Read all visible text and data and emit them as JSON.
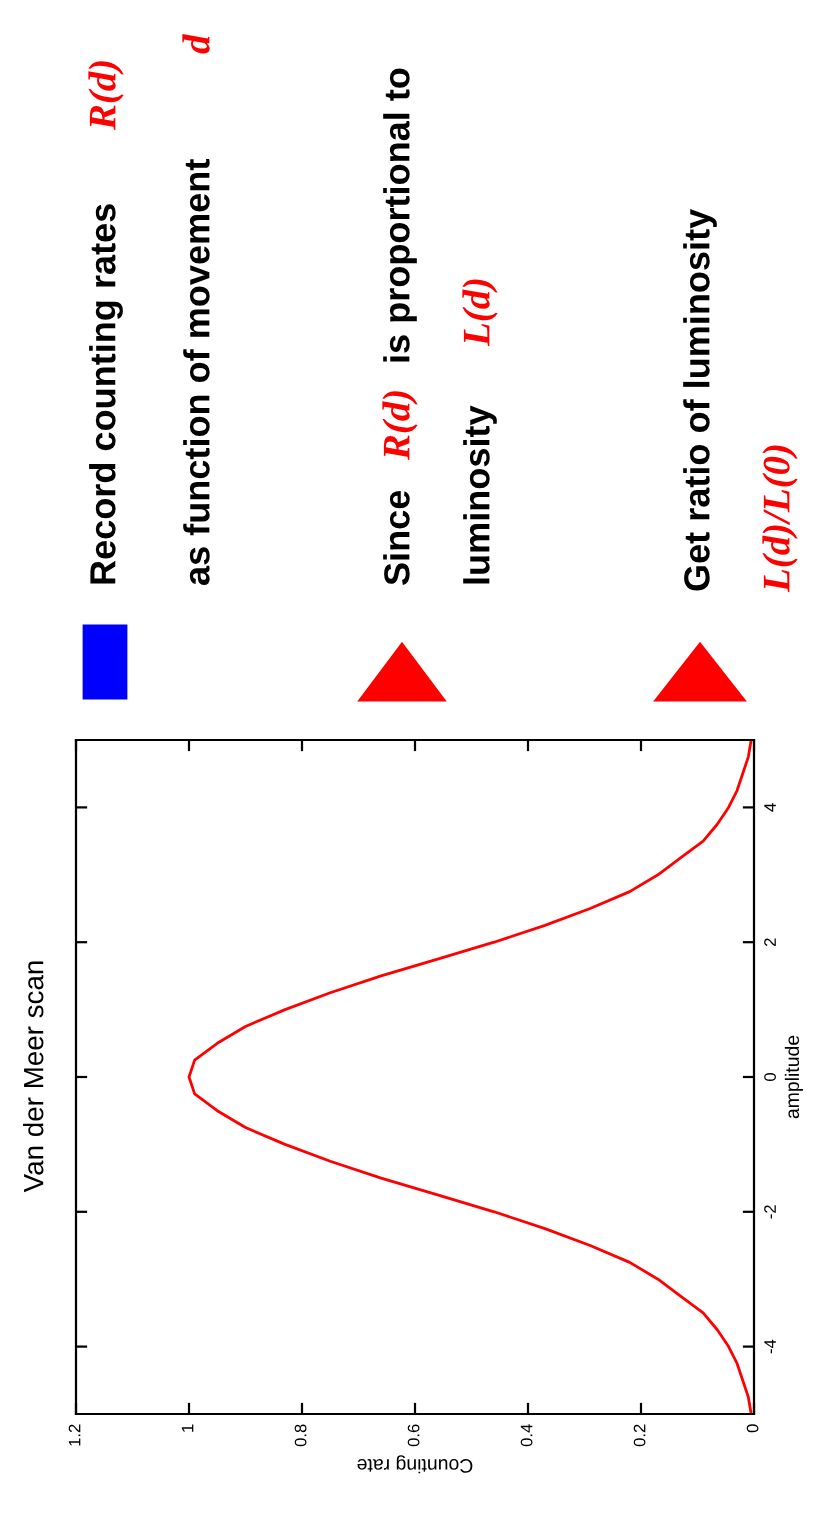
{
  "chart_data": {
    "type": "line",
    "title": "Van der Meer scan",
    "xlabel": "Counting rate",
    "ylabel": "amplitude",
    "series": [
      {
        "color": "#ff0000",
        "x": [
          0.005,
          0.01,
          0.02,
          0.03,
          0.045,
          0.065,
          0.09,
          0.13,
          0.17,
          0.22,
          0.29,
          0.37,
          0.46,
          0.56,
          0.66,
          0.75,
          0.83,
          0.9,
          0.95,
          0.99,
          1,
          0.99,
          0.95,
          0.9,
          0.83,
          0.75,
          0.66,
          0.56,
          0.46,
          0.37,
          0.29,
          0.22,
          0.17,
          0.13,
          0.09,
          0.065,
          0.045,
          0.03,
          0.02,
          0.01,
          0.005
        ],
        "values": [
          -5,
          -4.75,
          -4.5,
          -4.25,
          -4,
          -3.75,
          -3.5,
          -3.25,
          -3,
          -2.75,
          -2.5,
          -2.25,
          -2,
          -1.75,
          -1.5,
          -1.25,
          -1,
          -0.75,
          -0.5,
          -0.25,
          0,
          0.25,
          0.5,
          0.75,
          1,
          1.25,
          1.5,
          1.75,
          2,
          2.25,
          2.5,
          2.75,
          3,
          3.25,
          3.5,
          3.75,
          4,
          4.25,
          4.5,
          4.75,
          5
        ]
      }
    ],
    "xlim": [
      1.2,
      0
    ],
    "xticks": [
      0,
      0.2,
      0.4,
      0.6,
      0.8,
      1,
      1.2
    ],
    "ylim": [
      -5,
      5
    ],
    "yticks": [
      -4,
      -2,
      0,
      2,
      4
    ],
    "grid": false,
    "legend": false,
    "marker": "none",
    "line_style": "solid",
    "annotations": [
      "Record counting rates",
      "R(d)",
      "as function of movement",
      "d",
      "Since",
      "R(d)",
      "is proportional to",
      "luminosity",
      "L(d)",
      "Get ratio of luminosity",
      "L(d)/L(0)"
    ]
  }
}
